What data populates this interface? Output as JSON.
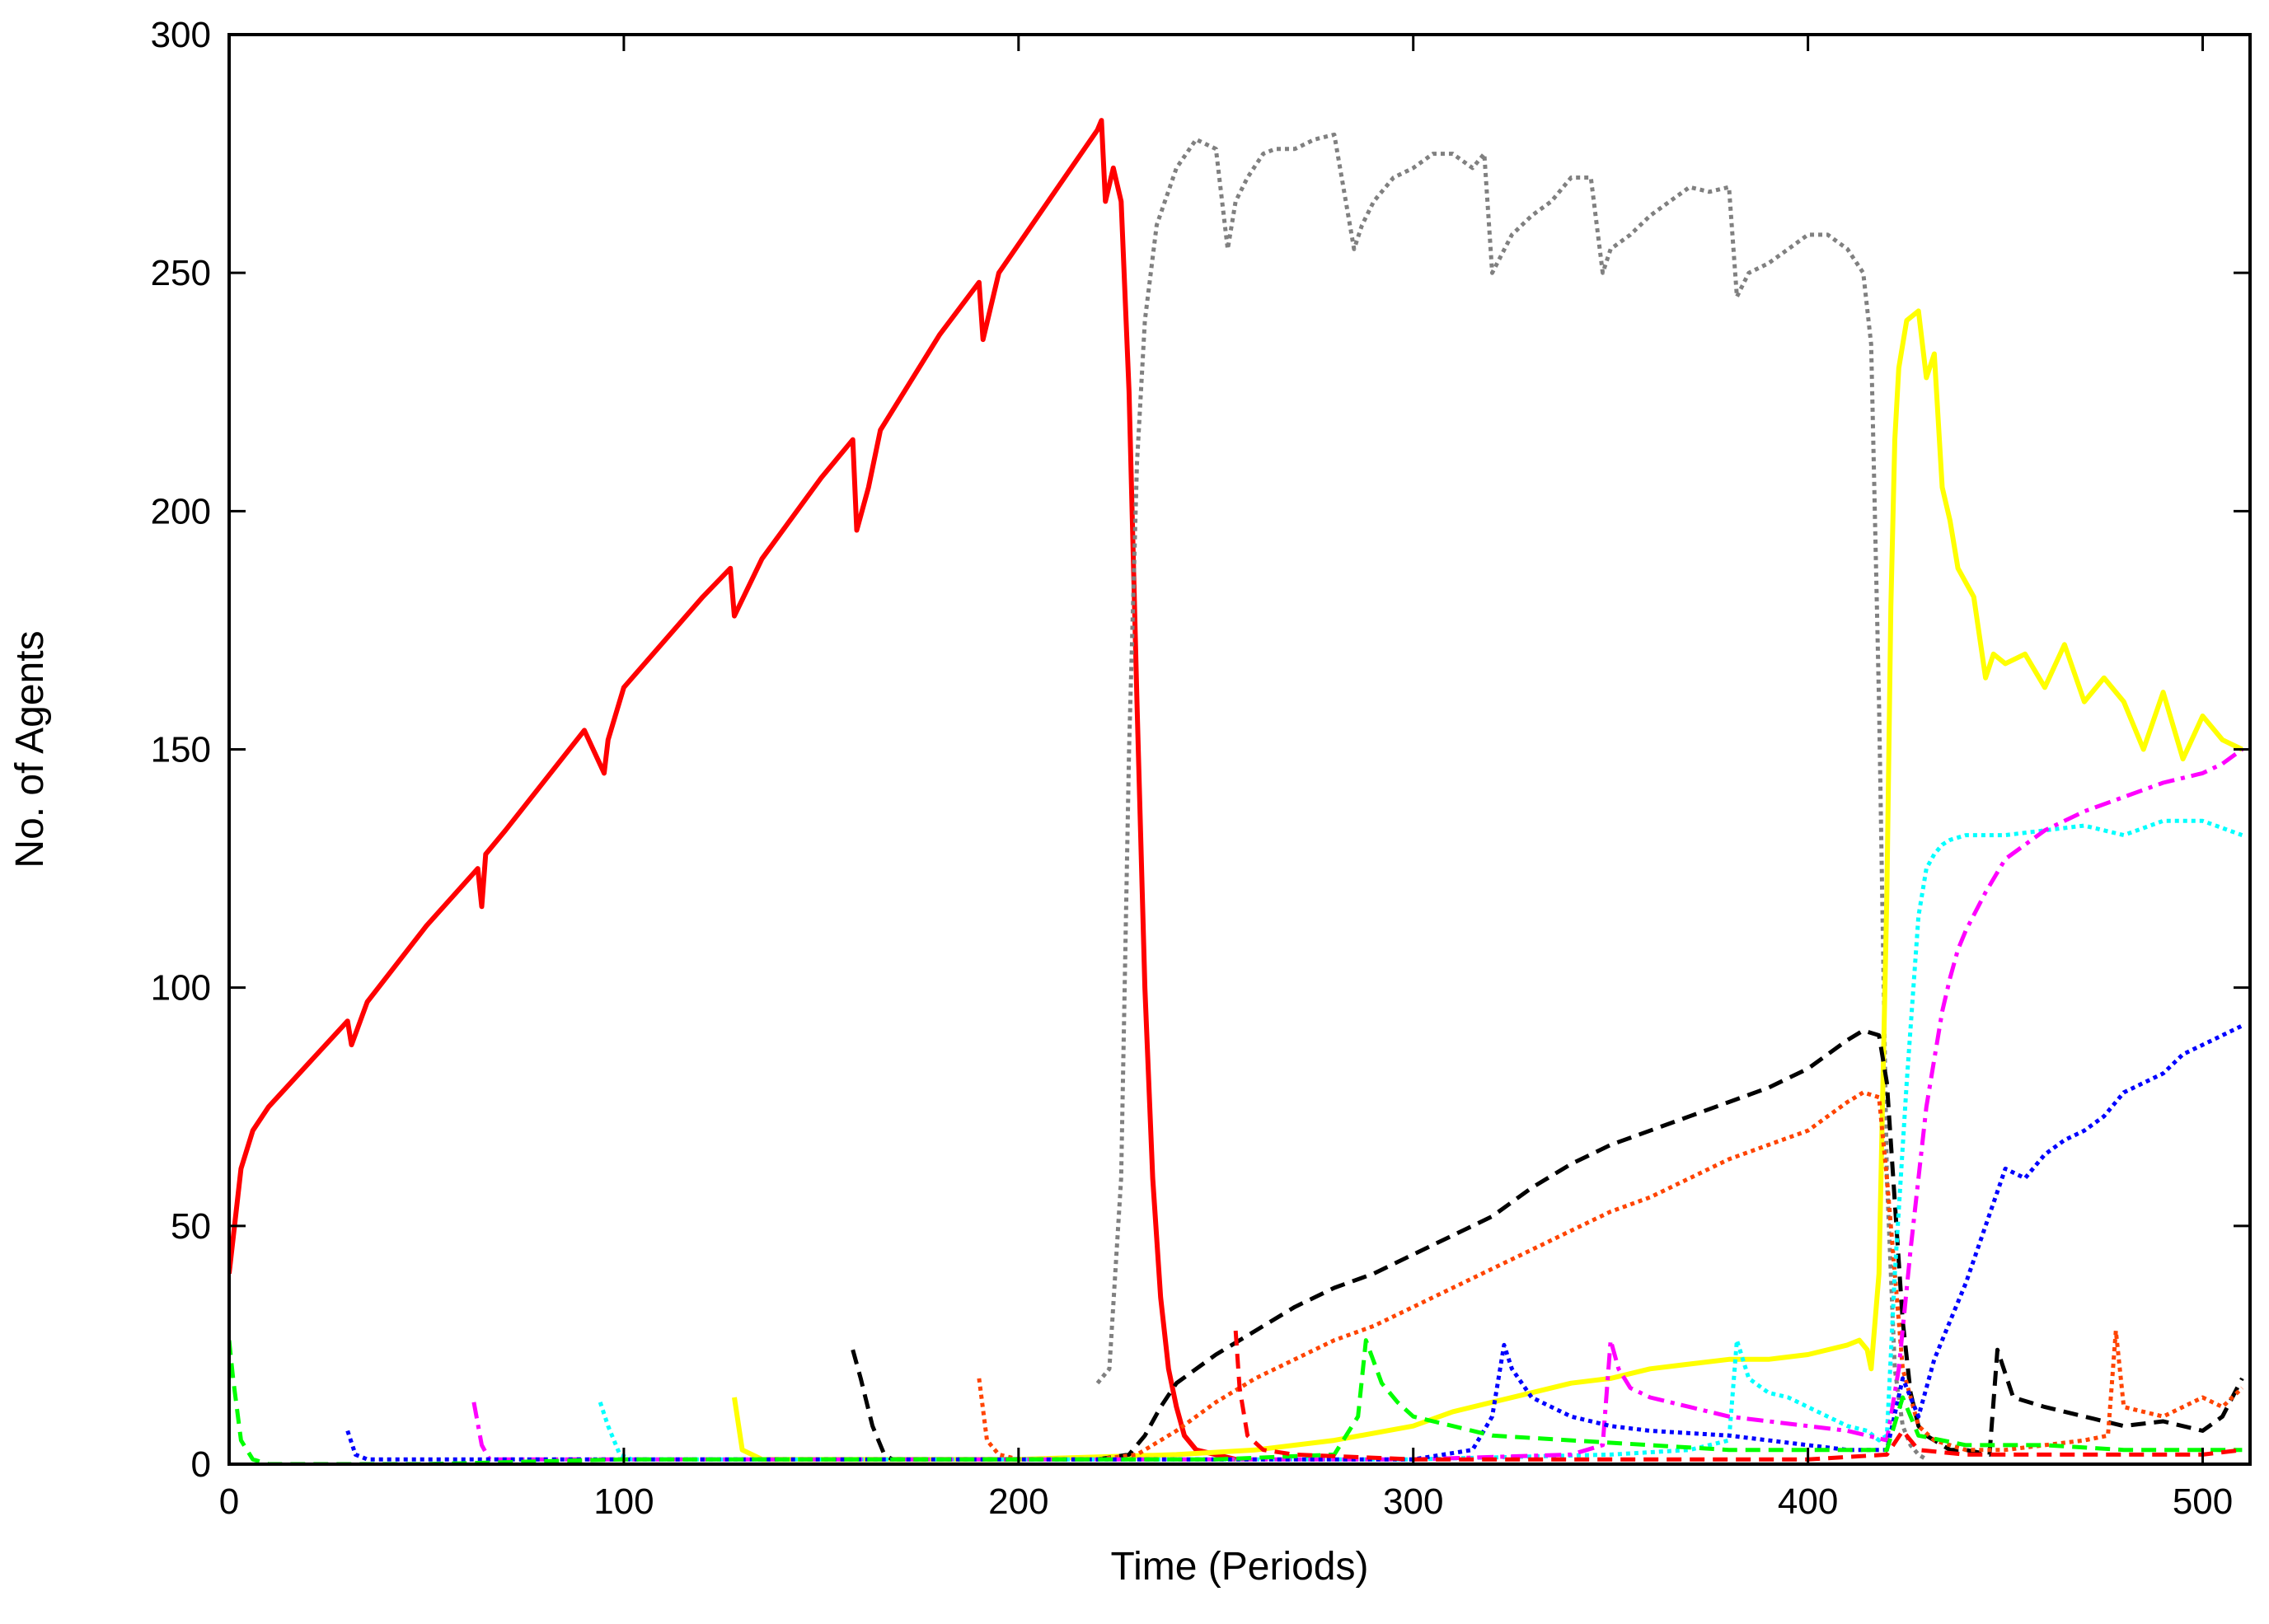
{
  "chart_data": {
    "type": "line",
    "title": "",
    "xlabel": "Time (Periods)",
    "ylabel": "No. of Agents",
    "xlim": [
      0,
      512
    ],
    "ylim": [
      0,
      300
    ],
    "xticks": [
      "0",
      "100",
      "200",
      "300",
      "400",
      "500"
    ],
    "xtick_values": [
      0,
      100,
      200,
      300,
      400,
      500
    ],
    "yticks": [
      "0",
      "50",
      "100",
      "150",
      "200",
      "250",
      "300"
    ],
    "ytick_values": [
      0,
      50,
      100,
      150,
      200,
      250,
      300
    ],
    "grid": false,
    "legend": "none",
    "series": [
      {
        "color": "#ff0000",
        "style": "solid",
        "x": [
          0,
          3,
          6,
          10,
          20,
          30,
          31,
          35,
          50,
          63,
          64,
          65,
          70,
          90,
          95,
          96,
          100,
          120,
          127,
          128,
          135,
          150,
          158,
          159,
          162,
          165,
          180,
          190,
          191,
          195,
          210,
          220,
          221,
          222,
          224,
          226,
          228,
          230,
          232,
          234,
          236,
          238,
          240,
          242,
          245,
          250,
          255
        ],
        "y": [
          40,
          62,
          70,
          75,
          84,
          93,
          88,
          97,
          113,
          125,
          117,
          128,
          133,
          154,
          145,
          152,
          163,
          182,
          188,
          178,
          190,
          207,
          215,
          196,
          205,
          217,
          237,
          248,
          236,
          250,
          268,
          280,
          282,
          265,
          272,
          265,
          225,
          160,
          100,
          60,
          35,
          20,
          12,
          6,
          3,
          2,
          1
        ]
      },
      {
        "color": "#808080",
        "style": "dotted",
        "x": [
          220,
          223,
          226,
          228,
          230,
          232,
          235,
          240,
          245,
          250,
          253,
          255,
          258,
          262,
          265,
          270,
          275,
          280,
          285,
          287,
          290,
          295,
          300,
          305,
          310,
          315,
          318,
          320,
          325,
          330,
          335,
          340,
          345,
          348,
          350,
          355,
          360,
          365,
          370,
          375,
          380,
          382,
          385,
          390,
          395,
          400,
          405,
          410,
          414,
          416,
          418,
          420,
          422,
          424,
          426,
          428,
          430
        ],
        "y": [
          17,
          20,
          60,
          150,
          210,
          240,
          260,
          272,
          278,
          276,
          255,
          265,
          270,
          275,
          276,
          276,
          278,
          279,
          255,
          260,
          265,
          270,
          272,
          275,
          275,
          272,
          275,
          250,
          258,
          262,
          265,
          270,
          270,
          250,
          255,
          258,
          262,
          265,
          268,
          267,
          268,
          245,
          250,
          252,
          255,
          258,
          258,
          255,
          250,
          235,
          160,
          60,
          20,
          8,
          4,
          2,
          1
        ]
      },
      {
        "color": "#ffff00",
        "style": "solid",
        "x": [
          128,
          130,
          135,
          150,
          200,
          240,
          260,
          280,
          300,
          310,
          320,
          330,
          340,
          350,
          360,
          370,
          380,
          390,
          400,
          410,
          413,
          415,
          416,
          418,
          420,
          421,
          422,
          423,
          425,
          428,
          430,
          432,
          434,
          436,
          438,
          440,
          442,
          445,
          447,
          450,
          455,
          460,
          465,
          470,
          475,
          480,
          485,
          490,
          495,
          500,
          505,
          510
        ],
        "y": [
          14,
          3,
          1,
          1,
          1,
          2,
          3,
          5,
          8,
          11,
          13,
          15,
          17,
          18,
          20,
          21,
          22,
          22,
          23,
          25,
          26,
          24,
          20,
          40,
          120,
          180,
          215,
          230,
          240,
          242,
          228,
          233,
          205,
          198,
          188,
          185,
          182,
          165,
          170,
          168,
          170,
          163,
          172,
          160,
          165,
          160,
          150,
          162,
          148,
          157,
          152,
          150
        ]
      },
      {
        "color": "#000000",
        "style": "dashed",
        "x": [
          158,
          160,
          163,
          166,
          168,
          170,
          180,
          200,
          220,
          228,
          232,
          236,
          240,
          250,
          260,
          270,
          280,
          290,
          300,
          310,
          320,
          330,
          340,
          350,
          360,
          370,
          380,
          390,
          400,
          405,
          410,
          414,
          418,
          420,
          422,
          424,
          426,
          428,
          430,
          432,
          434,
          436,
          440,
          446,
          448,
          452,
          460,
          470,
          480,
          490,
          500,
          505,
          510
        ],
        "y": [
          24,
          18,
          8,
          2,
          1,
          1,
          1,
          1,
          1,
          2,
          6,
          12,
          17,
          23,
          28,
          33,
          37,
          40,
          44,
          48,
          52,
          58,
          63,
          67,
          70,
          73,
          76,
          79,
          83,
          86,
          89,
          91,
          90,
          80,
          55,
          30,
          15,
          8,
          6,
          5,
          4,
          3,
          3,
          2,
          24,
          14,
          12,
          10,
          8,
          9,
          7,
          10,
          18
        ]
      },
      {
        "color": "#ff4400",
        "style": "dotted",
        "x": [
          190,
          192,
          195,
          200,
          210,
          220,
          230,
          240,
          250,
          260,
          270,
          280,
          290,
          300,
          310,
          320,
          330,
          340,
          350,
          360,
          370,
          380,
          390,
          400,
          405,
          410,
          414,
          418,
          420,
          424,
          428,
          432,
          436,
          440,
          450,
          460,
          470,
          476,
          478,
          480,
          490,
          500,
          505,
          510
        ],
        "y": [
          18,
          5,
          2,
          1,
          1,
          1,
          2,
          7,
          13,
          18,
          22,
          26,
          29,
          33,
          37,
          41,
          45,
          49,
          53,
          56,
          60,
          64,
          67,
          70,
          73,
          76,
          78,
          77,
          60,
          20,
          8,
          5,
          4,
          3,
          3,
          4,
          5,
          6,
          28,
          12,
          10,
          14,
          12,
          16
        ]
      },
      {
        "color": "#00ffff",
        "style": "dotted",
        "x": [
          94,
          96,
          99,
          102,
          110,
          130,
          160,
          200,
          250,
          300,
          350,
          370,
          380,
          382,
          385,
          390,
          395,
          400,
          405,
          410,
          415,
          418,
          420,
          422,
          425,
          428,
          430,
          432,
          434,
          436,
          440,
          450,
          460,
          470,
          480,
          490,
          500,
          510
        ],
        "y": [
          13,
          8,
          2,
          1,
          1,
          1,
          1,
          1,
          1,
          1,
          2,
          3,
          5,
          26,
          18,
          15,
          14,
          12,
          10,
          8,
          7,
          5,
          6,
          40,
          80,
          115,
          125,
          128,
          130,
          131,
          132,
          132,
          133,
          134,
          132,
          135,
          135,
          132
        ]
      },
      {
        "color": "#ff00ff",
        "style": "dashdot",
        "x": [
          62,
          64,
          66,
          70,
          100,
          200,
          300,
          340,
          348,
          350,
          352,
          355,
          360,
          370,
          380,
          390,
          400,
          410,
          415,
          420,
          423,
          426,
          428,
          430,
          432,
          434,
          436,
          438,
          440,
          445,
          450,
          460,
          470,
          480,
          490,
          500,
          505,
          510
        ],
        "y": [
          13,
          4,
          1,
          1,
          1,
          1,
          1,
          2,
          4,
          26,
          20,
          16,
          14,
          12,
          10,
          9,
          8,
          7,
          6,
          5,
          20,
          45,
          60,
          75,
          85,
          95,
          102,
          108,
          112,
          120,
          127,
          133,
          137,
          140,
          143,
          145,
          147,
          150
        ]
      },
      {
        "color": "#0000ff",
        "style": "dotted",
        "x": [
          30,
          32,
          35,
          50,
          100,
          200,
          300,
          315,
          320,
          323,
          325,
          330,
          340,
          350,
          360,
          380,
          400,
          410,
          420,
          424,
          428,
          432,
          436,
          440,
          445,
          450,
          455,
          460,
          465,
          470,
          475,
          480,
          485,
          490,
          495,
          500,
          505,
          510
        ],
        "y": [
          7,
          2,
          1,
          1,
          1,
          1,
          1,
          3,
          10,
          25,
          20,
          14,
          10,
          8,
          7,
          6,
          4,
          3,
          3,
          18,
          10,
          22,
          30,
          38,
          50,
          62,
          60,
          65,
          68,
          70,
          73,
          78,
          80,
          82,
          86,
          88,
          90,
          92
        ]
      },
      {
        "color": "#00ff00",
        "style": "dashed",
        "x": [
          0,
          1,
          3,
          6,
          10,
          20,
          50,
          100,
          200,
          250,
          280,
          286,
          288,
          292,
          296,
          300,
          310,
          320,
          340,
          360,
          380,
          400,
          420,
          424,
          428,
          440,
          460,
          480,
          500,
          510
        ],
        "y": [
          26,
          18,
          5,
          1,
          0,
          0,
          0,
          1,
          1,
          1,
          2,
          10,
          26,
          17,
          13,
          10,
          8,
          6,
          5,
          4,
          3,
          3,
          3,
          14,
          6,
          4,
          4,
          3,
          3,
          3
        ]
      },
      {
        "color": "#ff0000",
        "style": "dashed",
        "x": [
          255,
          256,
          258,
          262,
          270,
          300,
          350,
          400,
          420,
          424,
          428,
          440,
          470,
          500,
          510
        ],
        "y": [
          28,
          16,
          6,
          3,
          2,
          1,
          1,
          1,
          2,
          7,
          3,
          2,
          2,
          2,
          3
        ]
      }
    ]
  }
}
